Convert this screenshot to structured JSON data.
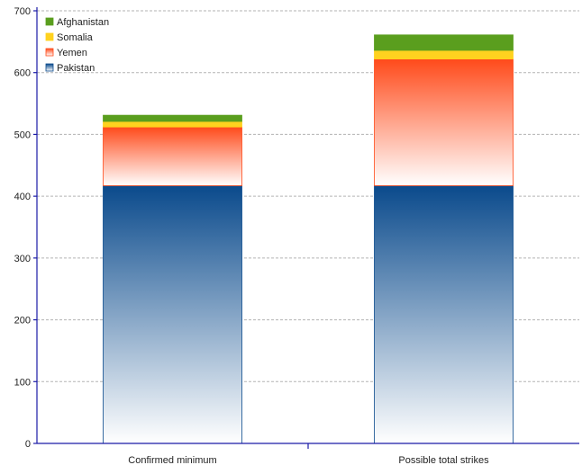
{
  "chart_data": {
    "type": "bar",
    "stacked": true,
    "categories": [
      "Confirmed minimum",
      "Possible total strikes"
    ],
    "series": [
      {
        "name": "Pakistan",
        "values": [
          417,
          417
        ],
        "color": "#0a4a8c"
      },
      {
        "name": "Yemen",
        "values": [
          95,
          205
        ],
        "color": "#ff4a1a"
      },
      {
        "name": "Somalia",
        "values": [
          9,
          14
        ],
        "color": "#ffd21f"
      },
      {
        "name": "Afghanistan",
        "values": [
          10,
          25
        ],
        "color": "#5a9e1e"
      }
    ],
    "ylim": [
      0,
      700
    ],
    "yticks": [
      0,
      100,
      200,
      300,
      400,
      500,
      600,
      700
    ],
    "grid": true,
    "legend_position": "top-left",
    "legend_order": [
      "Afghanistan",
      "Somalia",
      "Yemen",
      "Pakistan"
    ]
  }
}
